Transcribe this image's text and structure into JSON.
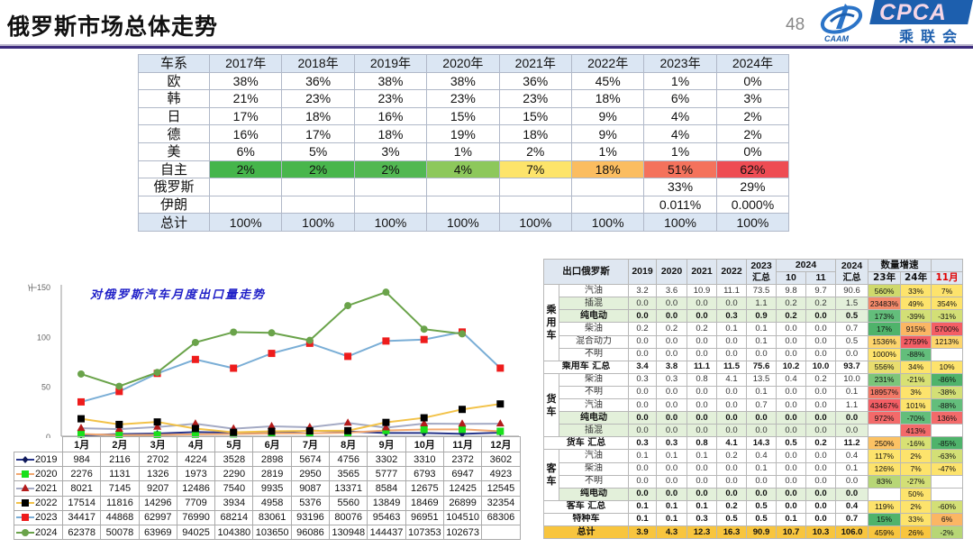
{
  "header": {
    "title": "俄罗斯市场总体走势",
    "page_number": "48",
    "logo_left_text": "CAAM",
    "logo_right_text": "CPCA",
    "logo_right_cn": "乘联会"
  },
  "share_table": {
    "headers": [
      "车系",
      "2017年",
      "2018年",
      "2019年",
      "2020年",
      "2021年",
      "2022年",
      "2023年",
      "2024年"
    ],
    "rows": [
      {
        "label": "欧",
        "values": [
          "38%",
          "36%",
          "38%",
          "38%",
          "36%",
          "45%",
          "1%",
          "0%"
        ]
      },
      {
        "label": "韩",
        "values": [
          "21%",
          "23%",
          "23%",
          "23%",
          "23%",
          "18%",
          "6%",
          "3%"
        ]
      },
      {
        "label": "日",
        "values": [
          "17%",
          "18%",
          "16%",
          "15%",
          "15%",
          "9%",
          "4%",
          "2%"
        ]
      },
      {
        "label": "德",
        "values": [
          "16%",
          "17%",
          "18%",
          "19%",
          "18%",
          "9%",
          "4%",
          "2%"
        ]
      },
      {
        "label": "美",
        "values": [
          "6%",
          "5%",
          "3%",
          "1%",
          "2%",
          "1%",
          "1%",
          "0%"
        ]
      },
      {
        "label": "自主",
        "values": [
          "2%",
          "2%",
          "2%",
          "4%",
          "7%",
          "18%",
          "51%",
          "62%"
        ],
        "colors": [
          "#45b54b",
          "#48b64c",
          "#52b852",
          "#8dc85b",
          "#fde46a",
          "#fbbd60",
          "#f4725c",
          "#ee4c53"
        ]
      },
      {
        "label": "俄罗斯",
        "values": [
          "",
          "",
          "",
          "",
          "",
          "",
          "33%",
          "29%"
        ]
      },
      {
        "label": "伊朗",
        "values": [
          "",
          "",
          "",
          "",
          "",
          "",
          "0.011%",
          "0.000%"
        ]
      },
      {
        "label": "总计",
        "values": [
          "100%",
          "100%",
          "100%",
          "100%",
          "100%",
          "100%",
          "100%",
          "100%"
        ],
        "header_style": true
      }
    ]
  },
  "chart_data": {
    "type": "line",
    "title": "对俄罗斯汽车月度出口量走势",
    "ylabel": "千",
    "ylim": [
      0,
      150
    ],
    "yticks": [
      0,
      50,
      100,
      150
    ],
    "categories": [
      "1月",
      "2月",
      "3月",
      "4月",
      "5月",
      "6月",
      "7月",
      "8月",
      "9月",
      "10月",
      "11月",
      "12月"
    ],
    "series": [
      {
        "name": "2019",
        "values": [
          984,
          2116,
          2702,
          4224,
          3528,
          2898,
          5674,
          4756,
          3302,
          3310,
          2372,
          3602
        ],
        "line_color": "#26348a",
        "marker_color": "#101a5a",
        "marker": "diamond"
      },
      {
        "name": "2020",
        "values": [
          2276,
          1131,
          1326,
          1973,
          2290,
          2819,
          2950,
          3565,
          5777,
          6793,
          6947,
          4923
        ],
        "line_color": "#f2a870",
        "marker_color": "#19e01b",
        "marker": "square"
      },
      {
        "name": "2021",
        "values": [
          8021,
          7145,
          9207,
          12486,
          7540,
          9935,
          9087,
          13371,
          8584,
          12675,
          12425,
          12545
        ],
        "line_color": "#a4aac4",
        "marker_color": "#b31b1b",
        "marker": "triangle"
      },
      {
        "name": "2022",
        "values": [
          17514,
          11816,
          14296,
          7709,
          3934,
          4958,
          5376,
          5560,
          13849,
          18469,
          26899,
          32354
        ],
        "line_color": "#f2c248",
        "marker_color": "#000000",
        "marker": "square"
      },
      {
        "name": "2023",
        "values": [
          34417,
          44868,
          62997,
          76990,
          68214,
          83061,
          93196,
          80076,
          95463,
          96951,
          104510,
          68306
        ],
        "line_color": "#7aaed6",
        "marker_color": "#ee1c1c",
        "marker": "square"
      },
      {
        "name": "2024",
        "values": [
          62378,
          50078,
          63969,
          94025,
          104380,
          103650,
          96086,
          130948,
          144437,
          107353,
          102673,
          null
        ],
        "line_color": "#6aa34a",
        "marker_color": "#6aa34a",
        "marker": "circle"
      }
    ]
  },
  "export_table": {
    "header": {
      "title": "出口俄罗斯",
      "years": [
        "2019",
        "2020",
        "2021",
        "2022"
      ],
      "y2023": "2023",
      "y2023_sub": "汇总",
      "y2024": "2024",
      "m10": "10",
      "m11": "11",
      "y2024_total": "2024",
      "y2024_total_sub": "汇总",
      "growth": "数量增速",
      "g23": "23年",
      "g24": "24年",
      "g11": "11月",
      "g11_color": "#e00000"
    },
    "groups": [
      {
        "label": "乘用车",
        "start": 0,
        "span": 6
      },
      {
        "label": "货车",
        "start": 7,
        "span": 5
      },
      {
        "label": "客车",
        "start": 13,
        "span": 4
      }
    ],
    "rows": [
      {
        "label": "汽油",
        "vals": [
          "3.2",
          "3.6",
          "10.9",
          "11.1",
          "73.5",
          "9.8",
          "9.7",
          "90.6"
        ],
        "growth": [
          [
            "560%",
            "#cfd96c"
          ],
          [
            "33%",
            "#fde36c"
          ],
          [
            "7%",
            "#fde36c"
          ]
        ]
      },
      {
        "label": "插混",
        "bg": "#e3f0da",
        "vals": [
          "0.0",
          "0.0",
          "0.0",
          "0.0",
          "1.1",
          "0.2",
          "0.2",
          "1.5"
        ],
        "growth": [
          [
            "23483%",
            "#f38a6a"
          ],
          [
            "49%",
            "#fde36c"
          ],
          [
            "354%",
            "#fde36c"
          ]
        ]
      },
      {
        "label": "纯电动",
        "bg": "#e3f0da",
        "bold": true,
        "vals": [
          "0.0",
          "0.0",
          "0.0",
          "0.3",
          "0.9",
          "0.2",
          "0.0",
          "0.5"
        ],
        "growth": [
          [
            "173%",
            "#63be7b"
          ],
          [
            "-39%",
            "#d3df76"
          ],
          [
            "-31%",
            "#d3df76"
          ]
        ]
      },
      {
        "label": "柴油",
        "vals": [
          "0.2",
          "0.2",
          "0.2",
          "0.1",
          "0.1",
          "0.0",
          "0.0",
          "0.7"
        ],
        "growth": [
          [
            "17%",
            "#4fb36b"
          ],
          [
            "915%",
            "#fbb664"
          ],
          [
            "5700%",
            "#f45e65"
          ]
        ]
      },
      {
        "label": "混合动力",
        "vals": [
          "0.0",
          "0.0",
          "0.0",
          "0.0",
          "0.1",
          "0.0",
          "0.0",
          "0.5"
        ],
        "growth": [
          [
            "1536%",
            "#fdd56c"
          ],
          [
            "2759%",
            "#f45e65"
          ],
          [
            "1213%",
            "#fdd56c"
          ]
        ]
      },
      {
        "label": "不明",
        "vals": [
          "0.0",
          "0.0",
          "0.0",
          "0.0",
          "0.0",
          "0.0",
          "0.0",
          "0.0"
        ],
        "growth": [
          [
            "1000%",
            "#fee36c"
          ],
          [
            "-88%",
            "#63be7b"
          ],
          [
            "",
            ""
          ]
        ]
      },
      {
        "label": "乘用车 汇总",
        "summary": true,
        "bold": true,
        "vals": [
          "3.4",
          "3.8",
          "11.1",
          "11.5",
          "75.6",
          "10.2",
          "10.0",
          "93.7"
        ],
        "growth": [
          [
            "556%",
            "#e8dd6e"
          ],
          [
            "34%",
            "#fde36c"
          ],
          [
            "10%",
            "#fde36c"
          ]
        ]
      },
      {
        "label": "柴油",
        "vals": [
          "0.3",
          "0.3",
          "0.8",
          "4.1",
          "13.5",
          "0.4",
          "0.2",
          "10.0"
        ],
        "growth": [
          [
            "231%",
            "#7cc57a"
          ],
          [
            "-21%",
            "#d8e174"
          ],
          [
            "-86%",
            "#4fb36b"
          ]
        ]
      },
      {
        "label": "不明",
        "vals": [
          "0.0",
          "0.0",
          "0.0",
          "0.0",
          "0.1",
          "0.0",
          "0.0",
          "0.1"
        ],
        "growth": [
          [
            "18957%",
            "#f37a68"
          ],
          [
            "3%",
            "#fde36c"
          ],
          [
            "-38%",
            "#d3df76"
          ]
        ]
      },
      {
        "label": "汽油",
        "vals": [
          "0.0",
          "0.0",
          "0.0",
          "0.0",
          "0.7",
          "0.0",
          "0.0",
          "1.1"
        ],
        "growth": [
          [
            "43467%",
            "#f45e65"
          ],
          [
            "101%",
            "#fde36c"
          ],
          [
            "-88%",
            "#63be7b"
          ]
        ]
      },
      {
        "label": "纯电动",
        "bg": "#e3f0da",
        "bold": true,
        "vals": [
          "0.0",
          "0.0",
          "0.0",
          "0.0",
          "0.0",
          "0.0",
          "0.0",
          "0.0"
        ],
        "growth": [
          [
            "972%",
            "#f36a6a"
          ],
          [
            "-70%",
            "#63be7b"
          ],
          [
            "136%",
            "#f36a6a"
          ]
        ]
      },
      {
        "label": "插混",
        "bg": "#e3f0da",
        "vals": [
          "0.0",
          "0.0",
          "0.0",
          "0.0",
          "0.0",
          "0.0",
          "0.0",
          "0.0"
        ],
        "growth": [
          [
            "",
            ""
          ],
          [
            "413%",
            "#f36a6a"
          ],
          [
            "",
            ""
          ]
        ]
      },
      {
        "label": "货车 汇总",
        "summary": true,
        "bold": true,
        "vals": [
          "0.3",
          "0.3",
          "0.8",
          "4.1",
          "14.3",
          "0.5",
          "0.2",
          "11.2"
        ],
        "growth": [
          [
            "250%",
            "#fcc264"
          ],
          [
            "-16%",
            "#d8e174"
          ],
          [
            "-85%",
            "#4fb36b"
          ]
        ]
      },
      {
        "label": "汽油",
        "vals": [
          "0.1",
          "0.1",
          "0.1",
          "0.2",
          "0.4",
          "0.0",
          "0.0",
          "0.4"
        ],
        "growth": [
          [
            "117%",
            "#fde36c"
          ],
          [
            "2%",
            "#fde36c"
          ],
          [
            "-63%",
            "#d3df76"
          ]
        ]
      },
      {
        "label": "柴油",
        "vals": [
          "0.0",
          "0.0",
          "0.0",
          "0.0",
          "0.1",
          "0.0",
          "0.0",
          "0.1"
        ],
        "growth": [
          [
            "126%",
            "#fde36c"
          ],
          [
            "7%",
            "#fde36c"
          ],
          [
            "-47%",
            "#fde36c"
          ]
        ]
      },
      {
        "label": "不明",
        "vals": [
          "0.0",
          "0.0",
          "0.0",
          "0.0",
          "0.0",
          "0.0",
          "0.0",
          "0.0"
        ],
        "growth": [
          [
            "83%",
            "#b7d676"
          ],
          [
            "-27%",
            "#d3df76"
          ],
          [
            "",
            ""
          ]
        ]
      },
      {
        "label": "纯电动",
        "bg": "#e3f0da",
        "bold": true,
        "vals": [
          "0.0",
          "0.0",
          "0.0",
          "0.0",
          "0.0",
          "0.0",
          "0.0",
          "0.0"
        ],
        "growth": [
          [
            "",
            ""
          ],
          [
            "50%",
            "#fde36c"
          ],
          [
            "",
            ""
          ]
        ]
      },
      {
        "label": "客车 汇总",
        "summary": true,
        "bold": true,
        "vals": [
          "0.1",
          "0.1",
          "0.1",
          "0.2",
          "0.5",
          "0.0",
          "0.0",
          "0.4"
        ],
        "growth": [
          [
            "119%",
            "#fde36c"
          ],
          [
            "2%",
            "#fde36c"
          ],
          [
            "-60%",
            "#d3df76"
          ]
        ]
      },
      {
        "label": "特种车",
        "summary": true,
        "bold": true,
        "vals": [
          "0.1",
          "0.1",
          "0.3",
          "0.5",
          "0.5",
          "0.1",
          "0.0",
          "0.7"
        ],
        "growth": [
          [
            "15%",
            "#4fb36b"
          ],
          [
            "33%",
            "#fde36c"
          ],
          [
            "6%",
            "#fbb664"
          ]
        ]
      },
      {
        "label": "总计",
        "summary": true,
        "bold": true,
        "bg": "#f8c53e",
        "vals": [
          "3.9",
          "4.3",
          "12.3",
          "16.3",
          "90.9",
          "10.7",
          "10.3",
          "106.0"
        ],
        "growth": [
          [
            "459%",
            "#f8c53e"
          ],
          [
            "26%",
            "#f8c53e"
          ],
          [
            "-2%",
            "#b7d676"
          ]
        ]
      }
    ]
  }
}
